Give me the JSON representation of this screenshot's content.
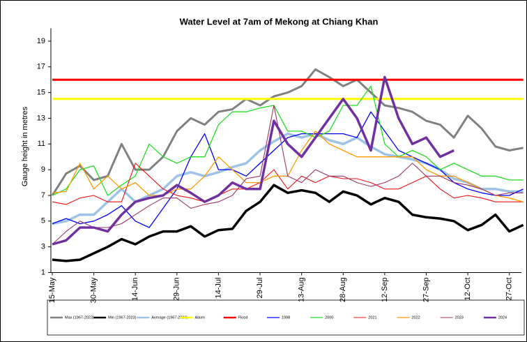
{
  "chart_data": {
    "type": "line",
    "title": "Water Level at 7am of Mekong at Chiang Khan",
    "y_label": "Gauge height in metres",
    "categories": [
      "15-May",
      null,
      null,
      "30-May",
      null,
      null,
      "14-Jun",
      null,
      null,
      "29-Jun",
      null,
      null,
      "14-Jul",
      null,
      null,
      "29-Jul",
      null,
      null,
      "13-Aug",
      null,
      null,
      "28-Aug",
      null,
      null,
      "12-Sep",
      null,
      null,
      "27-Sep",
      null,
      null,
      "12-Oct",
      null,
      null,
      "27-Oct",
      null
    ],
    "ylim": [
      1,
      20
    ],
    "yticks": [
      1,
      3,
      5,
      7,
      9,
      11,
      13,
      15,
      17,
      19
    ],
    "grid": false,
    "legend": "bottom",
    "series": [
      {
        "name": "Max (1967-2023)",
        "color": "#808080",
        "width": 3,
        "values": [
          7,
          8.7,
          9.3,
          8.2,
          8.5,
          11,
          9,
          9,
          10,
          12,
          13,
          12.5,
          13.5,
          13.7,
          14.5,
          14,
          14.7,
          15,
          15.5,
          16.8,
          16.2,
          15.5,
          16,
          15,
          14,
          13.8,
          13.5,
          12.8,
          12.5,
          11.5,
          13.2,
          12.2,
          10.8,
          10.5,
          10.7
        ]
      },
      {
        "name": "Min (1967-2023)",
        "color": "#000000",
        "width": 3.5,
        "values": [
          2,
          1.9,
          2,
          2.5,
          3,
          3.6,
          3.2,
          3.8,
          4.2,
          4.2,
          4.6,
          3.8,
          4.3,
          4.4,
          5.8,
          6.5,
          7.8,
          7.2,
          7.4,
          7.2,
          6.5,
          7.3,
          7,
          6.3,
          6.8,
          6.5,
          5.5,
          5.3,
          5.2,
          5,
          4.3,
          4.7,
          5.5,
          4.2,
          4.7
        ]
      },
      {
        "name": "Average (1967-2023)",
        "color": "#9dc3e6",
        "width": 3.5,
        "values": [
          4.8,
          5,
          5.5,
          5.5,
          6.5,
          7.5,
          6.5,
          7,
          7.5,
          8.5,
          8.8,
          8.5,
          8.8,
          9.2,
          9.5,
          10.5,
          11.2,
          11.8,
          11.5,
          11.8,
          11.3,
          11,
          11.5,
          10.8,
          10.2,
          10,
          9.8,
          9.5,
          9,
          8.3,
          8,
          7.5,
          7.5,
          7.3,
          7.3
        ]
      },
      {
        "name": "Alarm",
        "color": "#ffff00",
        "width": 3,
        "values": [
          14.5,
          14.5,
          14.5,
          14.5,
          14.5,
          14.5,
          14.5,
          14.5,
          14.5,
          14.5,
          14.5,
          14.5,
          14.5,
          14.5,
          14.5,
          14.5,
          14.5,
          14.5,
          14.5,
          14.5,
          14.5,
          14.5,
          14.5,
          14.5,
          14.5,
          14.5,
          14.5,
          14.5,
          14.5,
          14.5,
          14.5,
          14.5,
          14.5,
          14.5,
          14.5
        ]
      },
      {
        "name": "Flood",
        "color": "#ff0000",
        "width": 3,
        "values": [
          16,
          16,
          16,
          16,
          16,
          16,
          16,
          16,
          16,
          16,
          16,
          16,
          16,
          16,
          16,
          16,
          16,
          16,
          16,
          16,
          16,
          16,
          16,
          16,
          16,
          16,
          16,
          16,
          16,
          16,
          16,
          16,
          16,
          16,
          16
        ]
      },
      {
        "name": "1998",
        "color": "#0000ff",
        "width": 1.3,
        "values": [
          4.8,
          5.2,
          4.8,
          5,
          5.5,
          6.2,
          5,
          4.5,
          6,
          7.5,
          10,
          11.8,
          9,
          9,
          8.5,
          9.5,
          10.5,
          11.5,
          11.8,
          11.8,
          11.8,
          11.8,
          11.5,
          13.5,
          12,
          10.5,
          10,
          9.5,
          9,
          8,
          7.5,
          7.2,
          7,
          7,
          7.5
        ]
      },
      {
        "name": "2000",
        "color": "#22dd22",
        "width": 1.3,
        "values": [
          7,
          7.5,
          9,
          9.3,
          7,
          7.8,
          8.5,
          11,
          10,
          9.5,
          10,
          10,
          12.5,
          13.5,
          13.5,
          13.8,
          14,
          12,
          12,
          11.5,
          12,
          14,
          14,
          15.5,
          11,
          10,
          10.5,
          10,
          9,
          9.5,
          9,
          8.5,
          8.5,
          8.2,
          8.2
        ]
      },
      {
        "name": "2021",
        "color": "#ee1111",
        "width": 1.1,
        "values": [
          6.5,
          6.3,
          6.8,
          7,
          6.5,
          6.5,
          9.5,
          8.5,
          7.5,
          7,
          6.8,
          6.5,
          7,
          7.5,
          7.5,
          8,
          9,
          7.5,
          8.5,
          8,
          8.5,
          8.3,
          8.3,
          8,
          7.5,
          7.5,
          8,
          8.5,
          7.5,
          6.8,
          7,
          6.8,
          6.5,
          6.5,
          6.5
        ]
      },
      {
        "name": "2022",
        "color": "#ff9900",
        "width": 1.3,
        "values": [
          7.2,
          7.3,
          9.5,
          7.5,
          8.5,
          7.5,
          8,
          7,
          7,
          7.5,
          7.5,
          8.5,
          10,
          9,
          8,
          8,
          8.5,
          8.5,
          10.5,
          12,
          11,
          10.5,
          10,
          10,
          10,
          10,
          10,
          9,
          8.5,
          8.5,
          8,
          7.5,
          7,
          6.8,
          6.5
        ]
      },
      {
        "name": "2023",
        "color": "#993366",
        "width": 1.1,
        "values": [
          3.2,
          4.2,
          5,
          4.5,
          4.5,
          4.8,
          5.5,
          6.2,
          6.8,
          6.8,
          6,
          6.3,
          6.5,
          7,
          8.3,
          8.5,
          14,
          8.5,
          8,
          9,
          8.5,
          8.5,
          8,
          7.7,
          8,
          8.5,
          9.5,
          8.5,
          8.5,
          8,
          7.8,
          7.5,
          7,
          7.2,
          7.2
        ]
      },
      {
        "name": "2024",
        "color": "#7030a0",
        "width": 3.5,
        "values": [
          3.2,
          3.5,
          4.5,
          4.5,
          4.2,
          5.5,
          6.5,
          6.8,
          7,
          7.8,
          7.2,
          6.5,
          7,
          8,
          7.5,
          7.5,
          12.8,
          11,
          10,
          11.5,
          13,
          14.5,
          13,
          10.5,
          16.2,
          13,
          11,
          11.5,
          10,
          10.5,
          null,
          null,
          null,
          null,
          null
        ]
      }
    ]
  }
}
